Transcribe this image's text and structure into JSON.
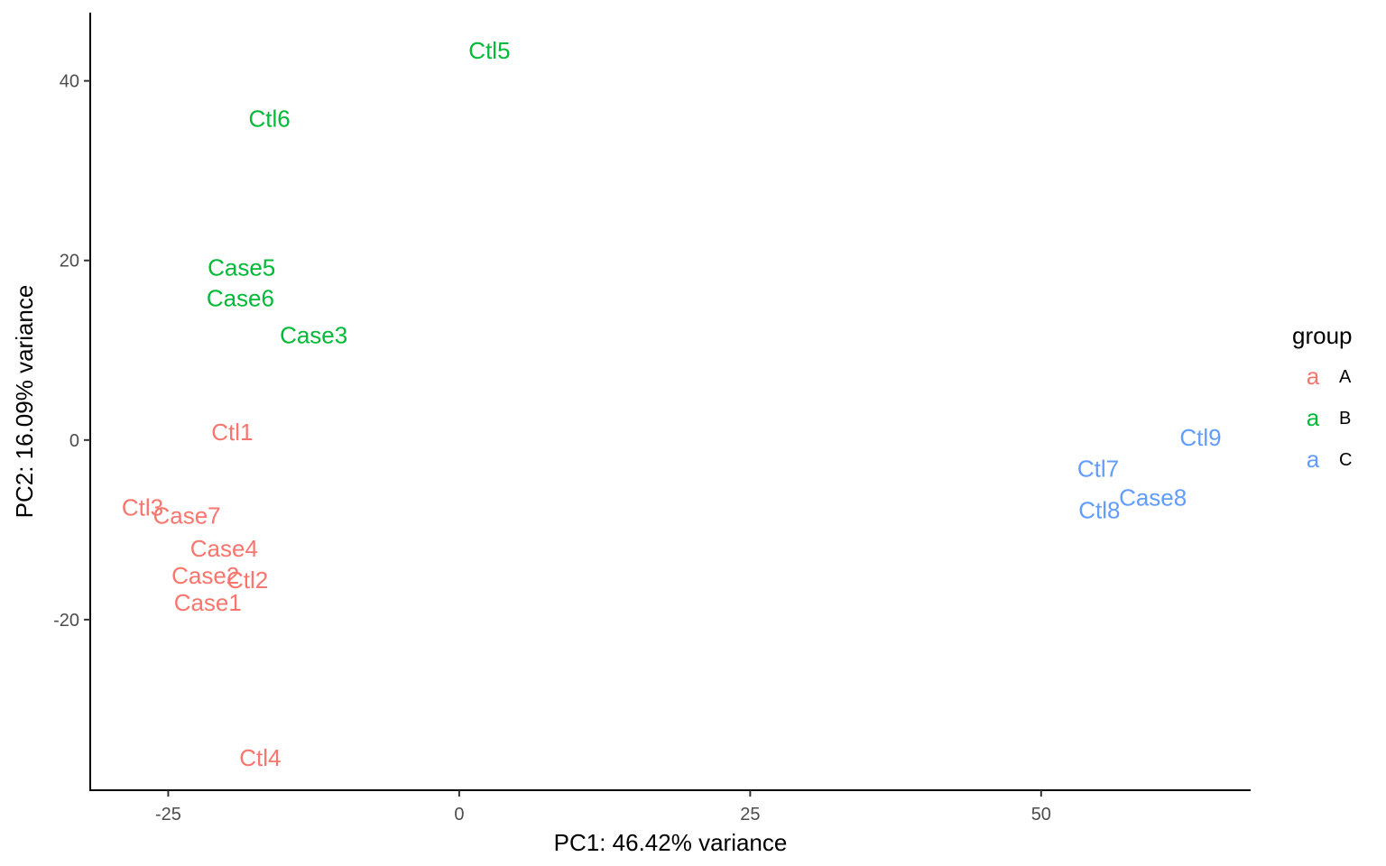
{
  "chart_data": {
    "type": "scatter",
    "xlabel": "PC1: 46.42% variance",
    "ylabel": "PC2: 16.09% variance",
    "xlim": [
      -31.7,
      68.0
    ],
    "ylim": [
      -39.0,
      47.6
    ],
    "x_ticks": [
      -25,
      0,
      25,
      50
    ],
    "y_ticks": [
      -20,
      0,
      20,
      40
    ],
    "x_tick_labels": [
      "-25",
      "0",
      "25",
      "50"
    ],
    "y_tick_labels": [
      "-20",
      "0",
      "20",
      "40"
    ],
    "grid": false,
    "legend": {
      "title": "group",
      "position": "right",
      "key_glyph": "a",
      "entries": [
        {
          "label": "A",
          "color": "#F8766D"
        },
        {
          "label": "B",
          "color": "#00BA38"
        },
        {
          "label": "C",
          "color": "#619CFF"
        }
      ]
    },
    "points": [
      {
        "label": "Ctl5",
        "x": 2.6,
        "y": 43.4,
        "group": "B"
      },
      {
        "label": "Ctl6",
        "x": -16.3,
        "y": 35.8,
        "group": "B"
      },
      {
        "label": "Case5",
        "x": -18.7,
        "y": 19.2,
        "group": "B"
      },
      {
        "label": "Case6",
        "x": -18.8,
        "y": 15.8,
        "group": "B"
      },
      {
        "label": "Case3",
        "x": -12.5,
        "y": 11.7,
        "group": "B"
      },
      {
        "label": "Ctl1",
        "x": -19.5,
        "y": 0.9,
        "group": "A"
      },
      {
        "label": "Ctl3",
        "x": -27.2,
        "y": -7.5,
        "group": "A"
      },
      {
        "label": "Case7",
        "x": -23.4,
        "y": -8.4,
        "group": "A"
      },
      {
        "label": "Case4",
        "x": -20.2,
        "y": -12.1,
        "group": "A"
      },
      {
        "label": "Case2",
        "x": -21.8,
        "y": -15.1,
        "group": "A"
      },
      {
        "label": "Ctl2",
        "x": -18.2,
        "y": -15.6,
        "group": "A"
      },
      {
        "label": "Case1",
        "x": -21.6,
        "y": -18.1,
        "group": "A"
      },
      {
        "label": "Ctl4",
        "x": -17.1,
        "y": -35.4,
        "group": "A"
      },
      {
        "label": "Ctl9",
        "x": 63.7,
        "y": 0.3,
        "group": "C"
      },
      {
        "label": "Ctl7",
        "x": 54.9,
        "y": -3.2,
        "group": "C"
      },
      {
        "label": "Case8",
        "x": 59.6,
        "y": -6.4,
        "group": "C"
      },
      {
        "label": "Ctl8",
        "x": 55.0,
        "y": -7.8,
        "group": "C"
      }
    ]
  }
}
